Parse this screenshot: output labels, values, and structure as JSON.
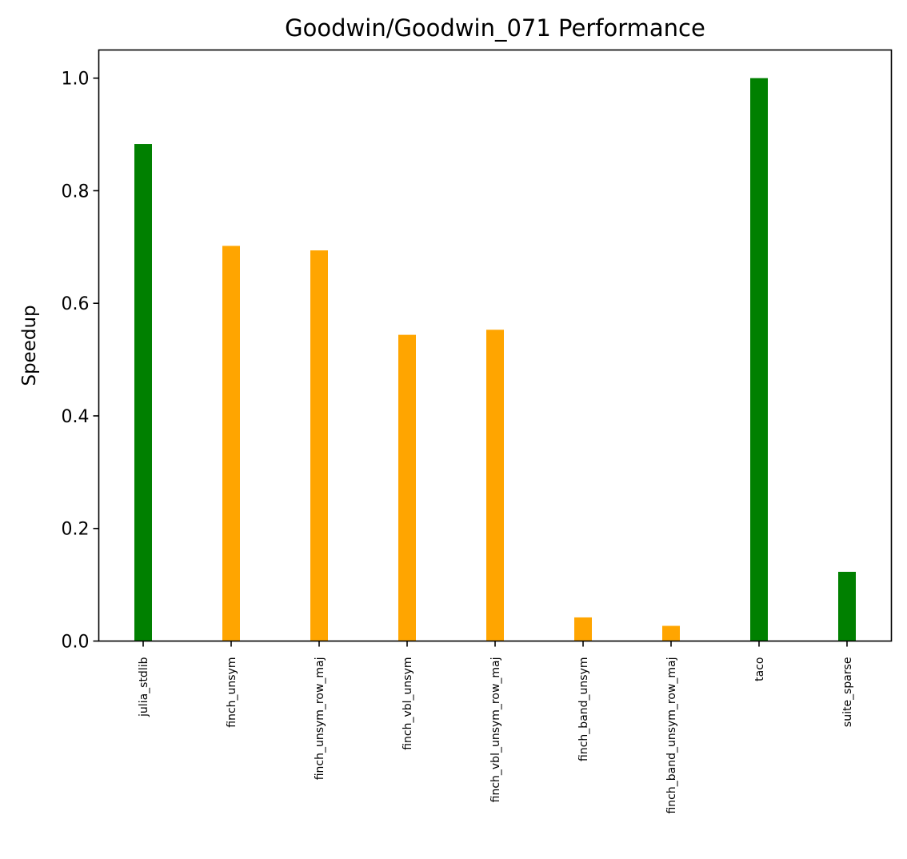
{
  "chart_data": {
    "type": "bar",
    "title": "Goodwin/Goodwin_071 Performance",
    "xlabel": "",
    "ylabel": "Speedup",
    "ylim": [
      0,
      1.05
    ],
    "yticks": [
      "0.0",
      "0.2",
      "0.4",
      "0.6",
      "0.8",
      "1.0"
    ],
    "grid": false,
    "categories": [
      "julia_stdlib",
      "finch_unsym",
      "finch_unsym_row_maj",
      "finch_vbl_unsym",
      "finch_vbl_unsym_row_maj",
      "finch_band_unsym",
      "finch_band_unsym_row_maj",
      "taco",
      "suite_sparse"
    ],
    "values": [
      0.883,
      0.702,
      0.694,
      0.544,
      0.553,
      0.042,
      0.027,
      1.0,
      0.123
    ],
    "bar_colors": [
      "#008000",
      "#ffa500",
      "#ffa500",
      "#ffa500",
      "#ffa500",
      "#ffa500",
      "#ffa500",
      "#008000",
      "#008000"
    ]
  }
}
